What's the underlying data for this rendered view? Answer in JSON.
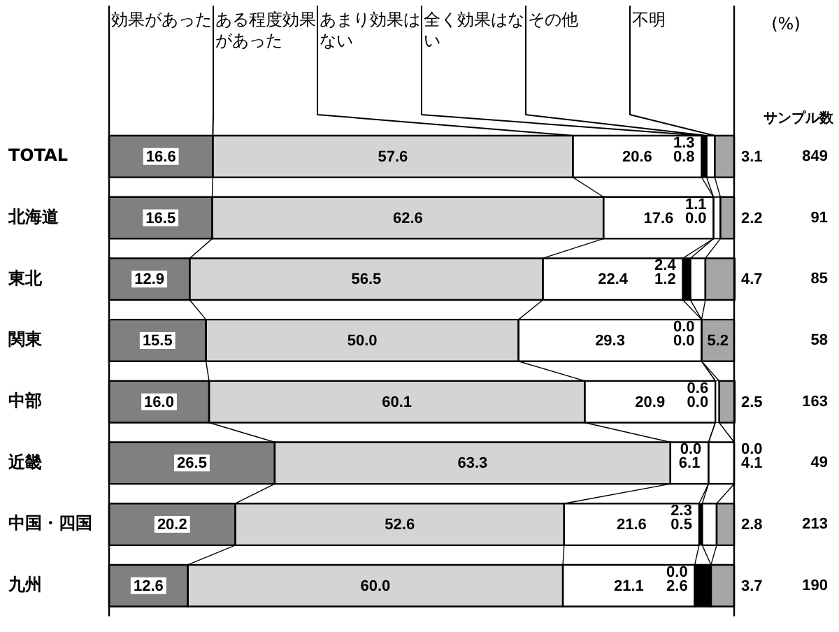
{
  "chart_data": {
    "type": "bar",
    "orientation": "horizontal",
    "stacked": true,
    "categories": [
      "TOTAL",
      "北海道",
      "東北",
      "関東",
      "中部",
      "近畿",
      "中国・四国",
      "九州"
    ],
    "series": [
      {
        "name": "効果があった",
        "color": "#808080",
        "values": [
          16.6,
          16.5,
          12.9,
          15.5,
          16.0,
          26.5,
          20.2,
          12.6
        ],
        "value_labels": [
          "16.6",
          "16.5",
          "12.9",
          "15.5",
          "16.0",
          "26.5",
          "20.2",
          "12.6"
        ]
      },
      {
        "name": "ある程度効果があった",
        "color": "#d4d4d4",
        "values": [
          57.6,
          62.6,
          56.5,
          50.0,
          60.1,
          63.3,
          52.6,
          60.0
        ],
        "value_labels": [
          "57.6",
          "62.6",
          "56.5",
          "50.0",
          "60.1",
          "63.3",
          "52.6",
          "60.0"
        ]
      },
      {
        "name": "あまり効果はない",
        "color": "#ffffff",
        "values": [
          20.6,
          17.6,
          22.4,
          29.3,
          20.9,
          6.1,
          21.6,
          21.1
        ],
        "value_labels": [
          "20.6",
          "17.6",
          "22.4",
          "29.3",
          "20.9",
          "6.1",
          "21.6",
          "21.1"
        ]
      },
      {
        "name": "全く効果はない",
        "color": "#000000",
        "values": [
          0.8,
          0.0,
          1.2,
          0.0,
          0.0,
          0.0,
          0.5,
          2.6
        ],
        "value_labels": [
          "0.8",
          "0.0",
          "1.2",
          "0.0",
          "0.0",
          "0.0",
          "0.5",
          "2.6"
        ]
      },
      {
        "name": "その他",
        "color": "#ffffff",
        "values": [
          1.3,
          1.1,
          2.4,
          0.0,
          0.6,
          4.1,
          2.3,
          0.0
        ],
        "value_labels": [
          "1.3",
          "1.1",
          "2.4",
          "0.0",
          "0.6",
          "4.1",
          "2.3",
          "0.0"
        ]
      },
      {
        "name": "不明",
        "color": "#a6a6a6",
        "values": [
          3.1,
          2.2,
          4.7,
          5.2,
          2.5,
          0.0,
          2.8,
          3.7
        ],
        "value_labels": [
          "3.1",
          "2.2",
          "4.7",
          "5.2",
          "2.5",
          "0.0",
          "2.8",
          "3.7"
        ]
      }
    ],
    "xlim": [
      0,
      100
    ],
    "annotations": [
      "(%)"
    ],
    "y2label": "サンプル数",
    "y2_categories": [
      "849",
      "91",
      "85",
      "58",
      "163",
      "49",
      "213",
      "190"
    ],
    "legend": "top",
    "tick_labels": "y"
  }
}
